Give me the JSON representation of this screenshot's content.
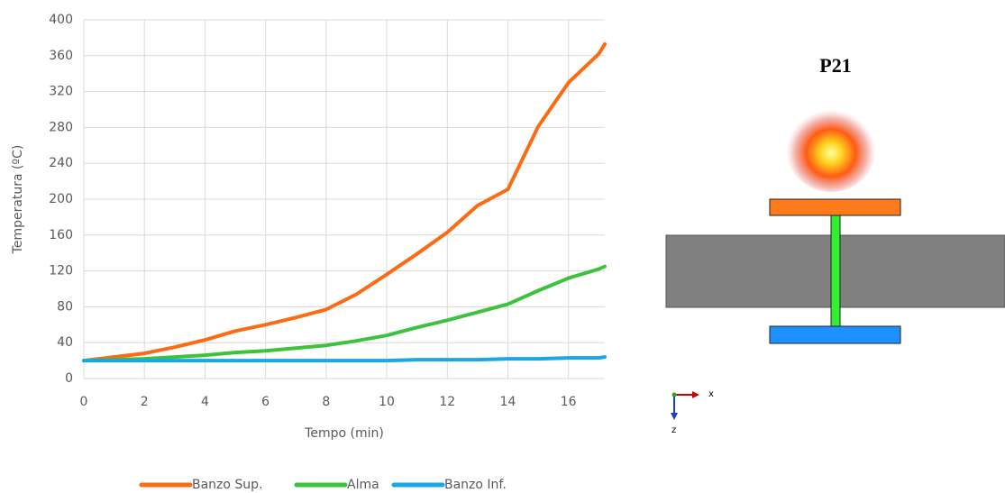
{
  "chart_data": {
    "type": "line",
    "x_label": "Tempo (min)",
    "y_label": "Temperatura (ºC)",
    "x": [
      0,
      1,
      2,
      3,
      4,
      5,
      6,
      7,
      8,
      9,
      10,
      11,
      12,
      13,
      14,
      15,
      16,
      17,
      17.2
    ],
    "series": [
      {
        "name": "Banzo Sup.",
        "color": "#fa6c14",
        "values": [
          20,
          24,
          28,
          35,
          43,
          53,
          60,
          68,
          77,
          94,
          116,
          139,
          163,
          193,
          211,
          281,
          330,
          362,
          373
        ]
      },
      {
        "name": "Alma",
        "color": "#3ec23e",
        "values": [
          20,
          21,
          22,
          24,
          26,
          29,
          31,
          34,
          37,
          42,
          48,
          57,
          65,
          74,
          83,
          98,
          112,
          122,
          125
        ]
      },
      {
        "name": "Banzo Inf.",
        "color": "#1aa7e6",
        "values": [
          20,
          20,
          20,
          20,
          20,
          20,
          20,
          20,
          20,
          20,
          20,
          21,
          21,
          21,
          22,
          22,
          23,
          23,
          24
        ]
      }
    ],
    "xlim": [
      0,
      17.2
    ],
    "xticks": [
      0,
      2,
      4,
      6,
      8,
      10,
      12,
      14,
      16
    ],
    "ylim": [
      0,
      400
    ],
    "yticks": [
      0,
      40,
      80,
      120,
      160,
      200,
      240,
      280,
      320,
      360,
      400
    ],
    "grid": true,
    "legend": "bottom"
  },
  "diagram": {
    "title": "P21",
    "axis_x": "x",
    "axis_z": "z"
  }
}
